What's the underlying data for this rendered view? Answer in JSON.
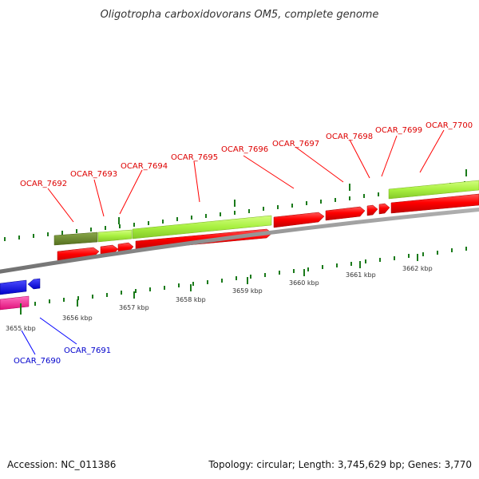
{
  "title": "Oligotropha carboxidovorans OM5, complete genome",
  "footer": {
    "accession": "Accession: NC_011386",
    "summary": "Topology: circular; Length: 3,745,629 bp; Genes: 3,770"
  },
  "colors": {
    "forward_gene": "#ff0000",
    "reverse_gene": "#0000ee",
    "forward_cds": "#a8f040",
    "forward_cds_dark": "#6b8c2a",
    "reverse_cds": "#ff2090",
    "backbone": "#808080",
    "tick": "#1a7a1a",
    "forward_label": "#dd0000",
    "reverse_label": "#0000cc"
  },
  "kbp_labels": [
    {
      "text": "3655 kbp",
      "pos": 3655.0
    },
    {
      "text": "3656 kbp",
      "pos": 3656.0
    },
    {
      "text": "3657 kbp",
      "pos": 3657.0
    },
    {
      "text": "3658 kbp",
      "pos": 3658.0
    },
    {
      "text": "3659 kbp",
      "pos": 3659.0
    },
    {
      "text": "3660 kbp",
      "pos": 3660.0
    },
    {
      "text": "3661 kbp",
      "pos": 3661.0
    },
    {
      "text": "3662 kbp",
      "pos": 3662.0
    }
  ],
  "forward_genes": [
    {
      "name": "OCAR_7692",
      "start": 3656.25,
      "end": 3656.95
    },
    {
      "name": "OCAR_7693",
      "start": 3657.0,
      "end": 3657.3
    },
    {
      "name": "OCAR_7694",
      "start": 3657.32,
      "end": 3657.62
    },
    {
      "name": "OCAR_7695",
      "start": 3657.64,
      "end": 3660.2
    },
    {
      "name": "OCAR_7696",
      "start": 3660.22,
      "end": 3661.12
    },
    {
      "name": "OCAR_7697",
      "start": 3661.14,
      "end": 3661.85
    },
    {
      "name": "OCAR_7698",
      "start": 3661.87,
      "end": 3662.07
    },
    {
      "name": "OCAR_7699",
      "start": 3662.09,
      "end": 3662.28
    },
    {
      "name": "OCAR_7700",
      "start": 3662.3,
      "end": 3663.4
    }
  ],
  "reverse_genes": [
    {
      "name": "OCAR_7690",
      "start": 3654.2,
      "end": 3655.15
    },
    {
      "name": "OCAR_7691",
      "start": 3655.2,
      "end": 3655.45
    }
  ]
}
